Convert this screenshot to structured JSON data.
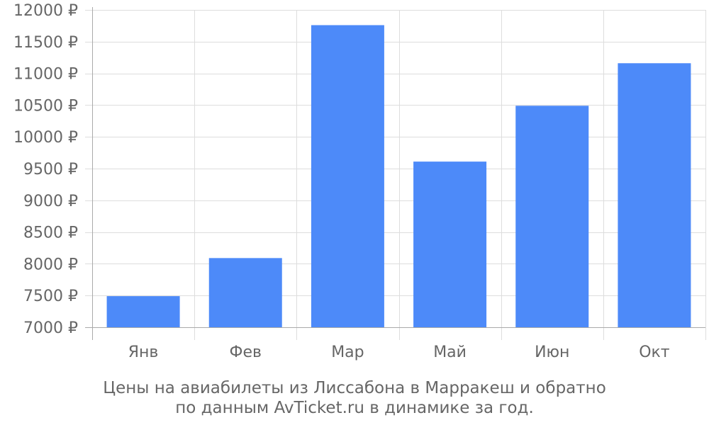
{
  "chart_data": {
    "type": "bar",
    "categories": [
      "Янв",
      "Фев",
      "Мар",
      "Май",
      "Июн",
      "Окт"
    ],
    "values": [
      7490,
      8090,
      11760,
      9610,
      10490,
      11160
    ],
    "ylim": [
      7000,
      12000
    ],
    "yticks": [
      7000,
      7500,
      8000,
      8500,
      9000,
      9500,
      10000,
      10500,
      11000,
      11500,
      12000
    ],
    "ytick_labels": [
      "7000 ₽",
      "7500 ₽",
      "8000 ₽",
      "8500 ₽",
      "9000 ₽",
      "9500 ₽",
      "10000 ₽",
      "10500 ₽",
      "11000 ₽",
      "11500 ₽",
      "12000 ₽"
    ],
    "grid": true,
    "bar_color": "#4d8af9",
    "grid_color": "#dddddd",
    "axis_color": "#aaaaaa",
    "text_color": "#666666"
  },
  "caption": {
    "line1": "Цены на авиабилеты из Лиссабона в Марракеш и обратно",
    "line2": "по данным AvTicket.ru в динамике за год."
  }
}
